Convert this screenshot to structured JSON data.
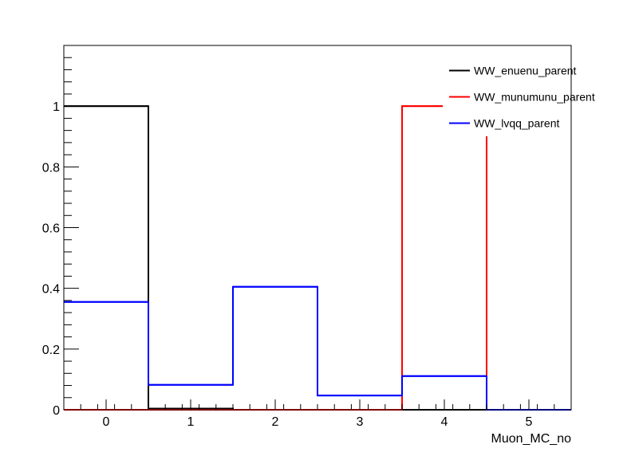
{
  "chart_data": {
    "type": "step",
    "xlabel": "Muon_MC_no",
    "ylabel": "",
    "xlim": [
      -0.5,
      5.5
    ],
    "ylim": [
      0,
      1.2
    ],
    "x_ticks": [
      0,
      1,
      2,
      3,
      4,
      5
    ],
    "x_tick_labels": [
      "0",
      "1",
      "2",
      "3",
      "4",
      "5"
    ],
    "y_ticks": [
      0,
      0.2,
      0.4,
      0.6,
      0.8,
      1
    ],
    "y_tick_labels": [
      "0",
      "0.2",
      "0.4",
      "0.6",
      "0.8",
      "1"
    ],
    "bin_edges": [
      -0.5,
      0.5,
      1.5,
      2.5,
      3.5,
      4.5,
      5.5
    ],
    "legend_position": "top-right",
    "grid": false,
    "series": [
      {
        "name": "WW_enuenu_parent",
        "color": "#000000",
        "values": [
          1.0,
          0.004,
          0.0,
          0.0,
          0.0,
          0.0
        ]
      },
      {
        "name": "WW_munumunu_parent",
        "color": "#ff0000",
        "values": [
          0.0,
          0.0,
          0.0,
          0.0,
          1.0,
          0.0
        ]
      },
      {
        "name": "WW_lvqq_parent",
        "color": "#0000ff",
        "values": [
          0.355,
          0.082,
          0.405,
          0.047,
          0.111,
          0.0
        ]
      }
    ]
  }
}
